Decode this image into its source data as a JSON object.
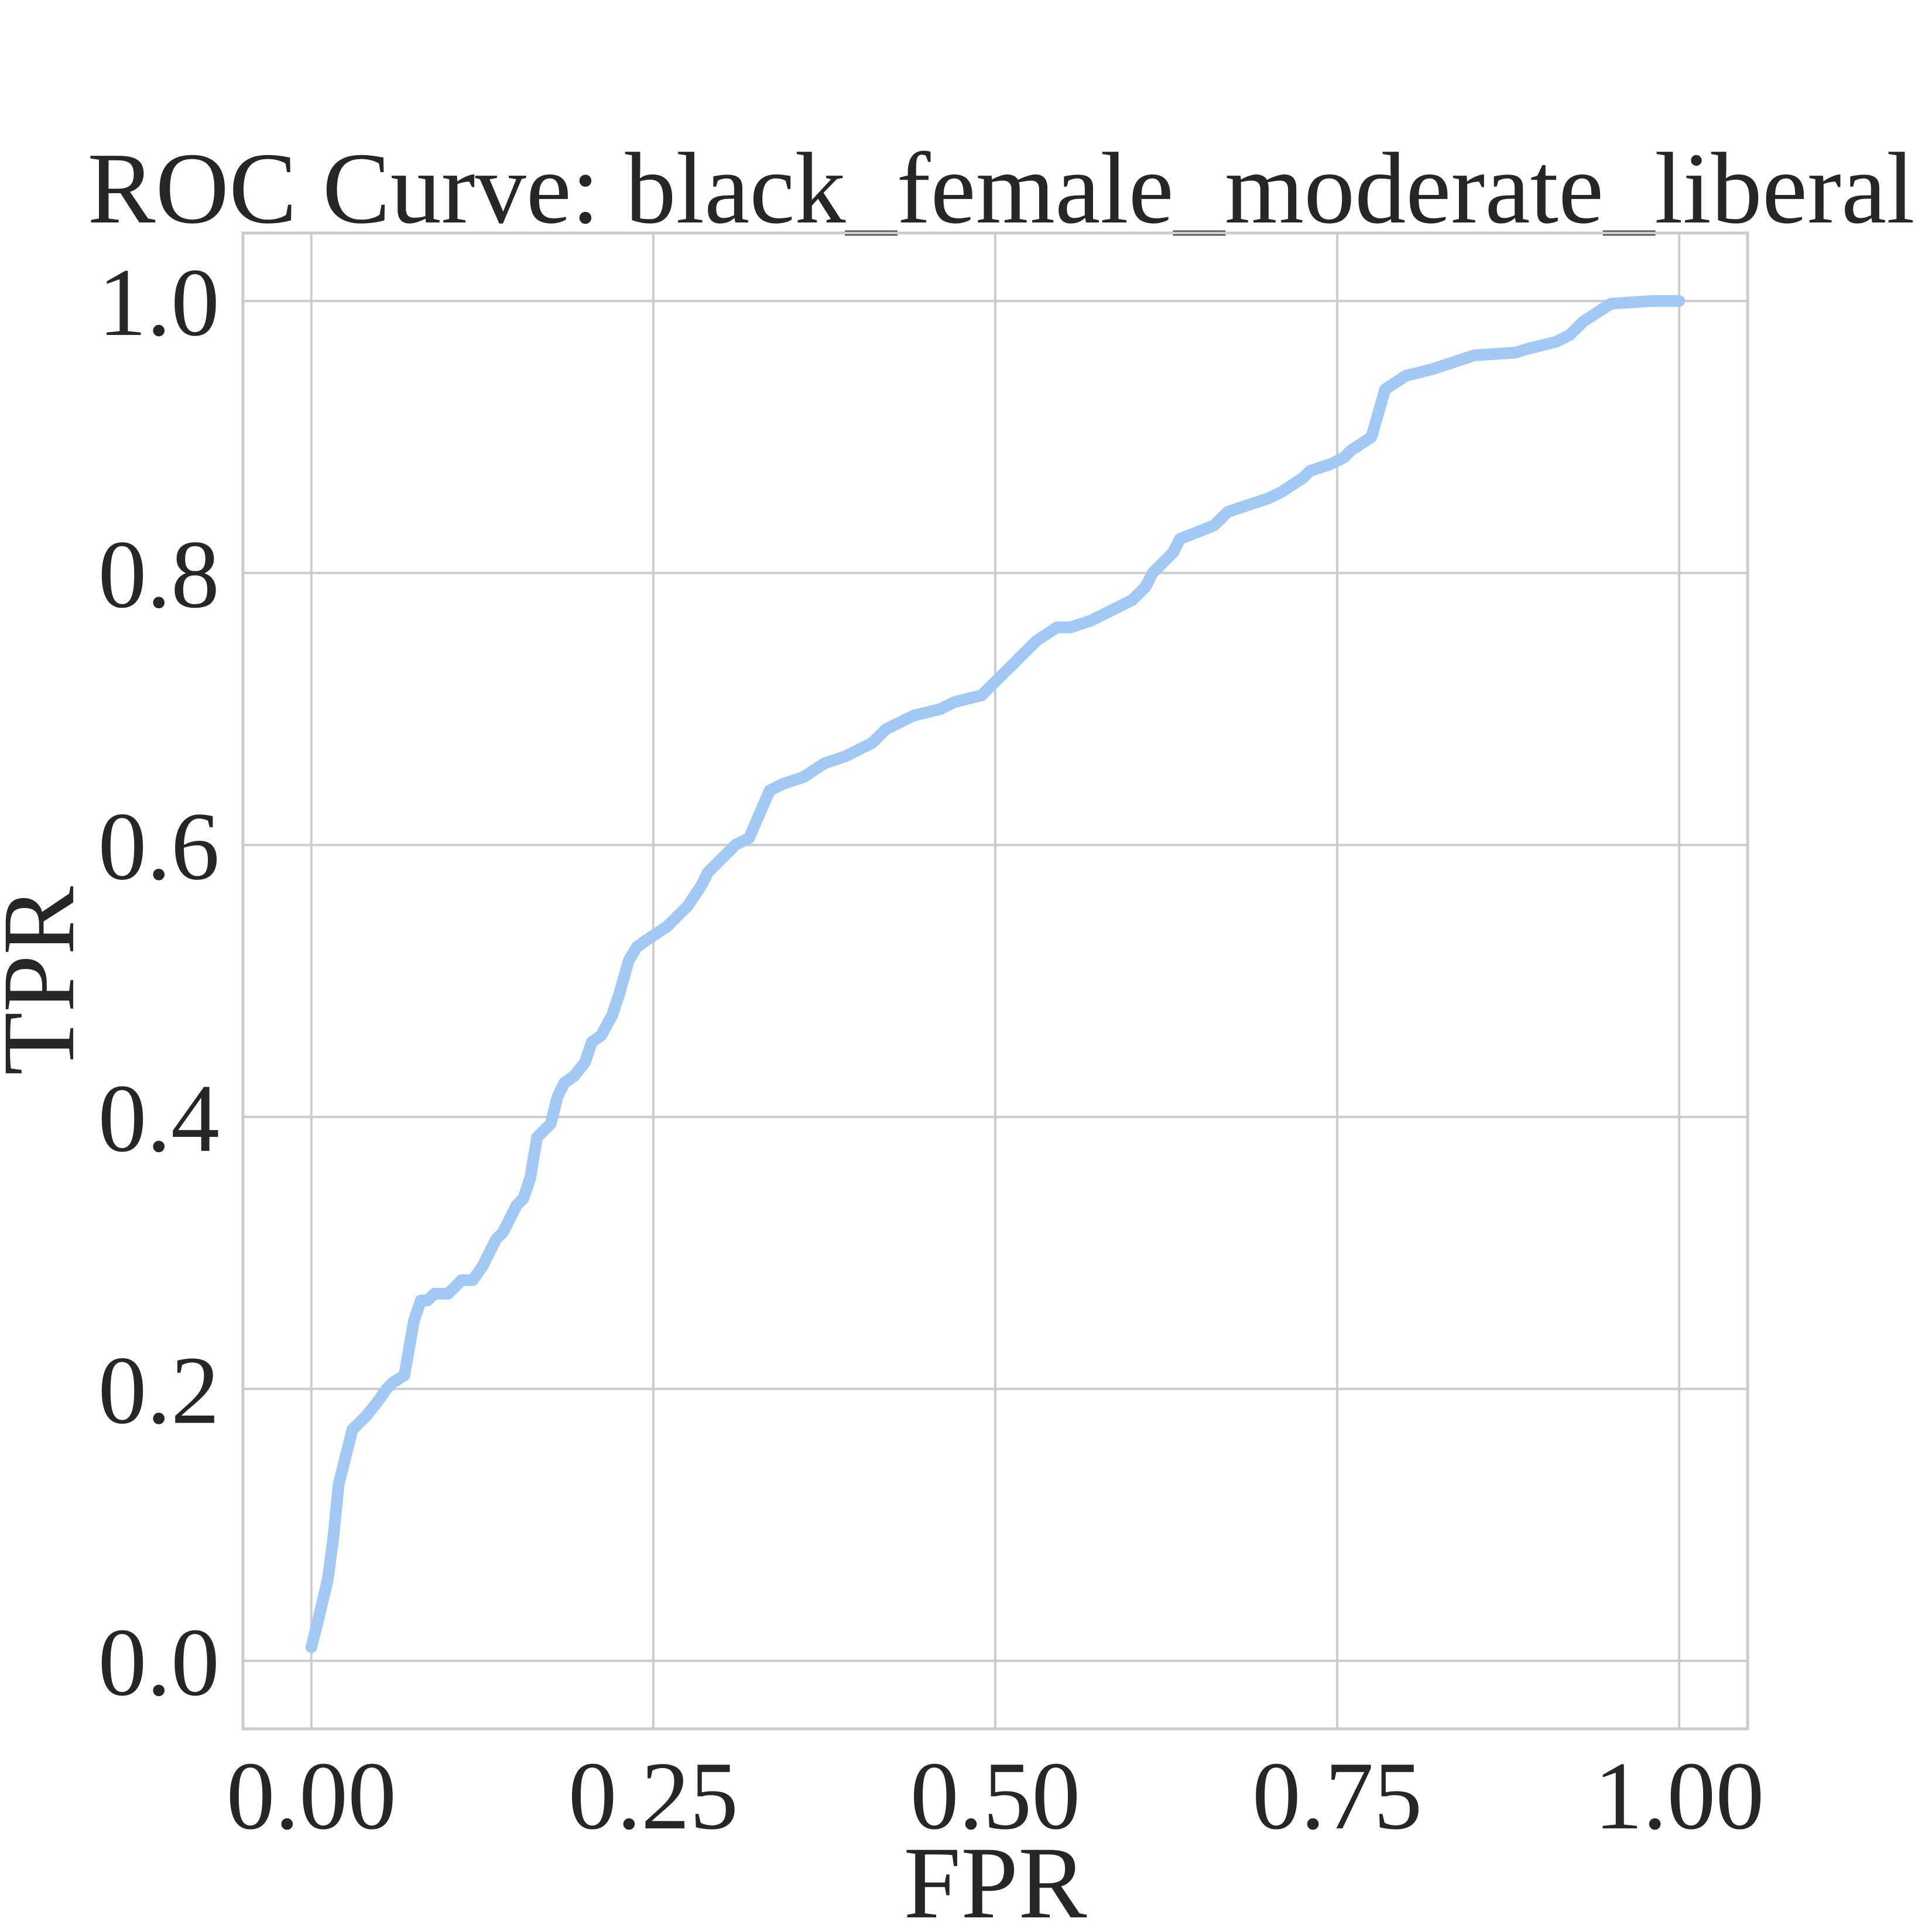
{
  "chart_data": {
    "type": "line",
    "title": "ROC Curve: black_female_moderate_liberal",
    "xlabel": "FPR",
    "ylabel": "TPR",
    "xlim": [
      -0.05,
      1.05
    ],
    "ylim": [
      -0.05,
      1.05
    ],
    "xticks": [
      0.0,
      0.25,
      0.5,
      0.75,
      1.0
    ],
    "xtick_labels": [
      "0.00",
      "0.25",
      "0.50",
      "0.75",
      "1.00"
    ],
    "yticks": [
      0.0,
      0.2,
      0.4,
      0.6,
      0.8,
      1.0
    ],
    "ytick_labels": [
      "0.0",
      "0.2",
      "0.4",
      "0.6",
      "0.8",
      "1.0"
    ],
    "grid": true,
    "line_color": "#a1c9f4",
    "series": [
      {
        "x": [
          0.0,
          0.005,
          0.012,
          0.016,
          0.02,
          0.025,
          0.03,
          0.035,
          0.04,
          0.048,
          0.055,
          0.06,
          0.068,
          0.075,
          0.08,
          0.085,
          0.09,
          0.1,
          0.11,
          0.118,
          0.125,
          0.135,
          0.14,
          0.15,
          0.155,
          0.16,
          0.165,
          0.17,
          0.175,
          0.18,
          0.185,
          0.192,
          0.2,
          0.205,
          0.212,
          0.22,
          0.225,
          0.232,
          0.238,
          0.245,
          0.26,
          0.275,
          0.285,
          0.29,
          0.3,
          0.31,
          0.32,
          0.335,
          0.345,
          0.36,
          0.375,
          0.39,
          0.4,
          0.41,
          0.42,
          0.43,
          0.44,
          0.46,
          0.47,
          0.49,
          0.5,
          0.51,
          0.52,
          0.53,
          0.545,
          0.555,
          0.57,
          0.58,
          0.6,
          0.61,
          0.615,
          0.63,
          0.635,
          0.66,
          0.67,
          0.7,
          0.71,
          0.725,
          0.73,
          0.745,
          0.755,
          0.76,
          0.775,
          0.785,
          0.8,
          0.82,
          0.85,
          0.88,
          0.89,
          0.91,
          0.92,
          0.93,
          0.95,
          0.98,
          0.99,
          1.0
        ],
        "y": [
          0.01,
          0.03,
          0.06,
          0.09,
          0.13,
          0.15,
          0.17,
          0.175,
          0.18,
          0.19,
          0.2,
          0.205,
          0.21,
          0.25,
          0.265,
          0.265,
          0.27,
          0.27,
          0.28,
          0.28,
          0.29,
          0.31,
          0.315,
          0.335,
          0.34,
          0.355,
          0.385,
          0.39,
          0.395,
          0.415,
          0.425,
          0.43,
          0.44,
          0.455,
          0.46,
          0.475,
          0.49,
          0.515,
          0.525,
          0.53,
          0.54,
          0.555,
          0.57,
          0.58,
          0.59,
          0.6,
          0.605,
          0.64,
          0.645,
          0.65,
          0.66,
          0.665,
          0.67,
          0.675,
          0.685,
          0.69,
          0.695,
          0.7,
          0.705,
          0.71,
          0.72,
          0.73,
          0.74,
          0.75,
          0.76,
          0.76,
          0.765,
          0.77,
          0.78,
          0.79,
          0.8,
          0.815,
          0.825,
          0.835,
          0.845,
          0.855,
          0.86,
          0.87,
          0.875,
          0.88,
          0.885,
          0.89,
          0.9,
          0.935,
          0.945,
          0.95,
          0.96,
          0.962,
          0.965,
          0.97,
          0.975,
          0.985,
          0.998,
          1.0,
          1.0,
          1.0
        ]
      }
    ]
  }
}
